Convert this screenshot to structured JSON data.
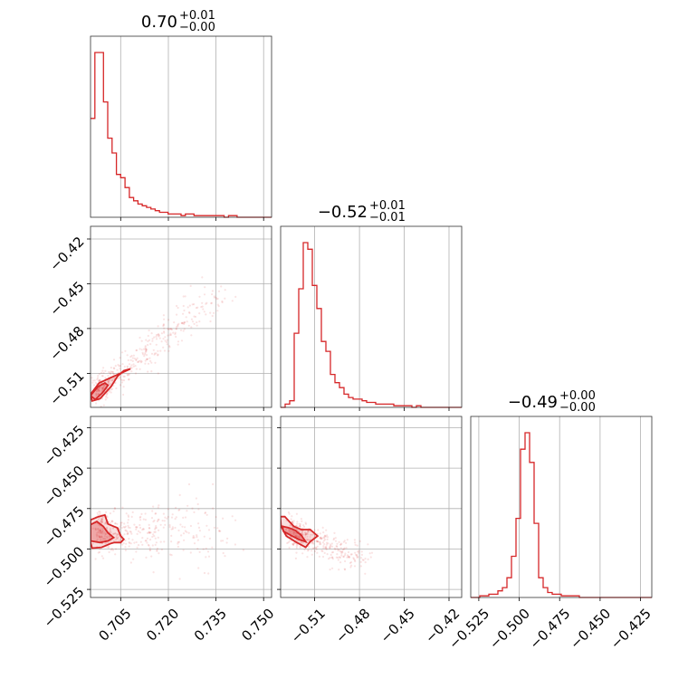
{
  "chart_data": {
    "type": "corner",
    "color": "#d62728",
    "params": [
      {
        "name": "",
        "title": {
          "value": "0.70",
          "upper": "+0.01",
          "lower": "−0.00"
        },
        "lim": [
          0.6955,
          0.7525
        ],
        "ticks": [
          0.705,
          0.72,
          0.735,
          0.75
        ],
        "tick_labels": [
          "0.705",
          "0.720",
          "0.735",
          "0.750"
        ]
      },
      {
        "name": "",
        "title": {
          "value": "−0.52",
          "upper": "+0.01",
          "lower": "−0.01"
        },
        "lim": [
          -0.5328,
          -0.4115
        ],
        "ticks": [
          -0.51,
          -0.48,
          -0.45,
          -0.42
        ],
        "tick_labels": [
          "−0.51",
          "−0.48",
          "−0.45",
          "−0.42"
        ]
      },
      {
        "name": "",
        "title": {
          "value": "−0.49",
          "upper": "+0.00",
          "lower": "−0.00"
        },
        "lim": [
          -0.53,
          -0.418
        ],
        "ticks": [
          -0.525,
          -0.5,
          -0.475,
          -0.45,
          -0.425
        ],
        "tick_labels": [
          "−0.525",
          "−0.500",
          "−0.475",
          "−0.450",
          "−0.425"
        ]
      }
    ],
    "hist_1d": [
      {
        "param": 0,
        "counts": [
          60,
          100,
          100,
          70,
          48,
          39,
          26,
          24,
          18,
          12,
          10,
          8,
          7,
          6,
          5,
          4,
          3,
          3,
          2,
          2,
          2,
          1,
          2,
          2,
          1,
          1,
          1,
          1,
          1,
          1,
          1,
          0,
          1,
          1,
          0,
          0,
          0,
          0,
          0,
          0,
          0,
          0
        ]
      },
      {
        "param": 1,
        "counts": [
          0,
          2,
          4,
          45,
          72,
          100,
          96,
          74,
          60,
          40,
          34,
          20,
          15,
          12,
          8,
          6,
          5,
          5,
          4,
          3,
          3,
          2,
          2,
          2,
          2,
          1,
          1,
          1,
          1,
          0,
          1,
          0,
          0,
          0,
          0,
          0,
          0,
          0,
          0,
          0
        ]
      },
      {
        "param": 2,
        "counts": [
          0,
          0,
          1,
          1,
          2,
          2,
          4,
          6,
          12,
          25,
          48,
          90,
          100,
          82,
          45,
          12,
          6,
          3,
          2,
          2,
          1,
          1,
          1,
          1,
          0,
          0,
          0,
          0,
          0,
          0,
          0,
          0,
          0,
          0,
          0,
          0,
          0,
          0,
          0,
          0
        ]
      }
    ],
    "hist_2d": [
      {
        "x_param": 0,
        "y_param": 1,
        "contour_outer": [
          [
            0.6955,
            -0.524
          ],
          [
            0.6982,
            -0.5165
          ],
          [
            0.702,
            -0.5128
          ],
          [
            0.706,
            -0.509
          ],
          [
            0.708,
            -0.507
          ],
          [
            0.706,
            -0.5082
          ],
          [
            0.704,
            -0.512
          ],
          [
            0.702,
            -0.5188
          ],
          [
            0.6985,
            -0.527
          ],
          [
            0.696,
            -0.5285
          ],
          [
            0.6955,
            -0.524
          ]
        ],
        "contour_inner": [
          [
            0.6955,
            -0.525
          ],
          [
            0.6978,
            -0.519
          ],
          [
            0.7,
            -0.5165
          ],
          [
            0.701,
            -0.518
          ],
          [
            0.6993,
            -0.523
          ],
          [
            0.697,
            -0.5275
          ],
          [
            0.6955,
            -0.525
          ]
        ]
      },
      {
        "x_param": 0,
        "y_param": 2,
        "contour_outer": [
          [
            0.6955,
            -0.482
          ],
          [
            0.698,
            -0.48
          ],
          [
            0.7,
            -0.479
          ],
          [
            0.701,
            -0.4845
          ],
          [
            0.704,
            -0.487
          ],
          [
            0.705,
            -0.492
          ],
          [
            0.706,
            -0.494
          ],
          [
            0.705,
            -0.496
          ],
          [
            0.703,
            -0.496
          ],
          [
            0.702,
            -0.4965
          ],
          [
            0.699,
            -0.499
          ],
          [
            0.696,
            -0.4995
          ],
          [
            0.6955,
            -0.496
          ],
          [
            0.6955,
            -0.482
          ]
        ],
        "contour_inner": [
          [
            0.6955,
            -0.485
          ],
          [
            0.6975,
            -0.483
          ],
          [
            0.6995,
            -0.486
          ],
          [
            0.701,
            -0.49
          ],
          [
            0.7028,
            -0.493
          ],
          [
            0.701,
            -0.495
          ],
          [
            0.6985,
            -0.496
          ],
          [
            0.6955,
            -0.495
          ],
          [
            0.6955,
            -0.485
          ]
        ]
      },
      {
        "x_param": 1,
        "y_param": 2,
        "contour_outer": [
          [
            -0.533,
            -0.48
          ],
          [
            -0.53,
            -0.48
          ],
          [
            -0.527,
            -0.483
          ],
          [
            -0.524,
            -0.486
          ],
          [
            -0.519,
            -0.488
          ],
          [
            -0.513,
            -0.488
          ],
          [
            -0.508,
            -0.492
          ],
          [
            -0.513,
            -0.4955
          ],
          [
            -0.516,
            -0.499
          ],
          [
            -0.523,
            -0.4955
          ],
          [
            -0.529,
            -0.492
          ],
          [
            -0.5325,
            -0.486
          ],
          [
            -0.533,
            -0.48
          ]
        ],
        "contour_inner": [
          [
            -0.5315,
            -0.486
          ],
          [
            -0.527,
            -0.487
          ],
          [
            -0.523,
            -0.4885
          ],
          [
            -0.519,
            -0.4915
          ],
          [
            -0.516,
            -0.4955
          ],
          [
            -0.521,
            -0.494
          ],
          [
            -0.526,
            -0.4915
          ],
          [
            -0.531,
            -0.489
          ],
          [
            -0.5315,
            -0.486
          ]
        ]
      }
    ],
    "grid": true
  }
}
